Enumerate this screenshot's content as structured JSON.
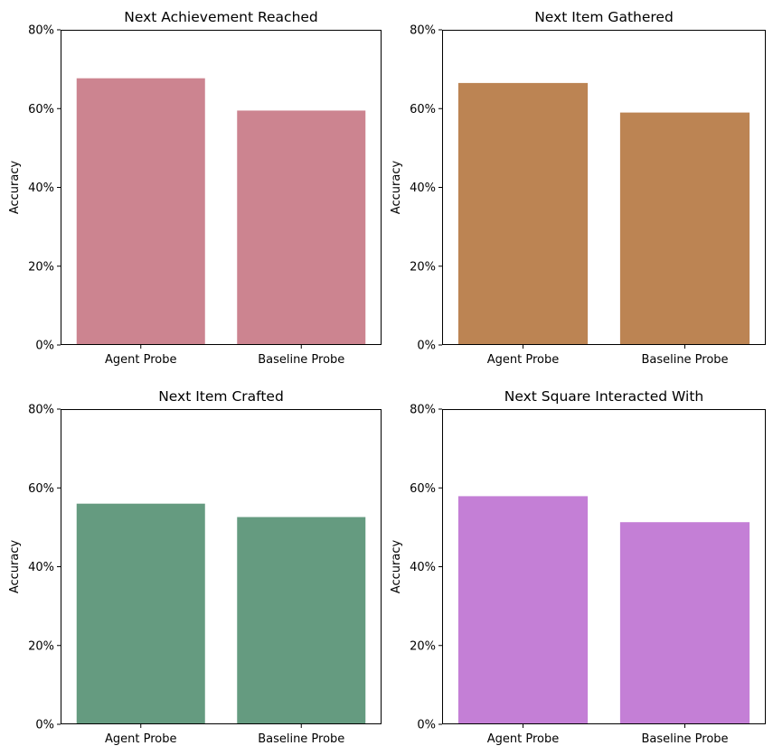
{
  "chart_data": [
    {
      "type": "bar",
      "title": "Next Achievement Reached",
      "xlabel": "",
      "ylabel": "Accuracy",
      "categories": [
        "Agent Probe",
        "Baseline Probe"
      ],
      "values": [
        0.677,
        0.595
      ],
      "ylim": [
        0,
        0.8
      ],
      "yticks": [
        "0%",
        "20%",
        "40%",
        "60%",
        "80%"
      ],
      "color": "#cc8490",
      "grid": false
    },
    {
      "type": "bar",
      "title": "Next Item Gathered",
      "xlabel": "",
      "ylabel": "Accuracy",
      "categories": [
        "Agent Probe",
        "Baseline Probe"
      ],
      "values": [
        0.665,
        0.59
      ],
      "ylim": [
        0,
        0.8
      ],
      "yticks": [
        "0%",
        "20%",
        "40%",
        "60%",
        "80%"
      ],
      "color": "#bc8453",
      "grid": false
    },
    {
      "type": "bar",
      "title": "Next Item Crafted",
      "xlabel": "",
      "ylabel": "Accuracy",
      "categories": [
        "Agent Probe",
        "Baseline Probe"
      ],
      "values": [
        0.56,
        0.526
      ],
      "ylim": [
        0,
        0.8
      ],
      "yticks": [
        "0%",
        "20%",
        "40%",
        "60%",
        "80%"
      ],
      "color": "#659b80",
      "grid": false
    },
    {
      "type": "bar",
      "title": "Next Square Interacted With",
      "xlabel": "",
      "ylabel": "Accuracy",
      "categories": [
        "Agent Probe",
        "Baseline Probe"
      ],
      "values": [
        0.579,
        0.513
      ],
      "ylim": [
        0,
        0.8
      ],
      "yticks": [
        "0%",
        "20%",
        "40%",
        "60%",
        "80%"
      ],
      "color": "#c47fd6",
      "grid": false
    }
  ]
}
